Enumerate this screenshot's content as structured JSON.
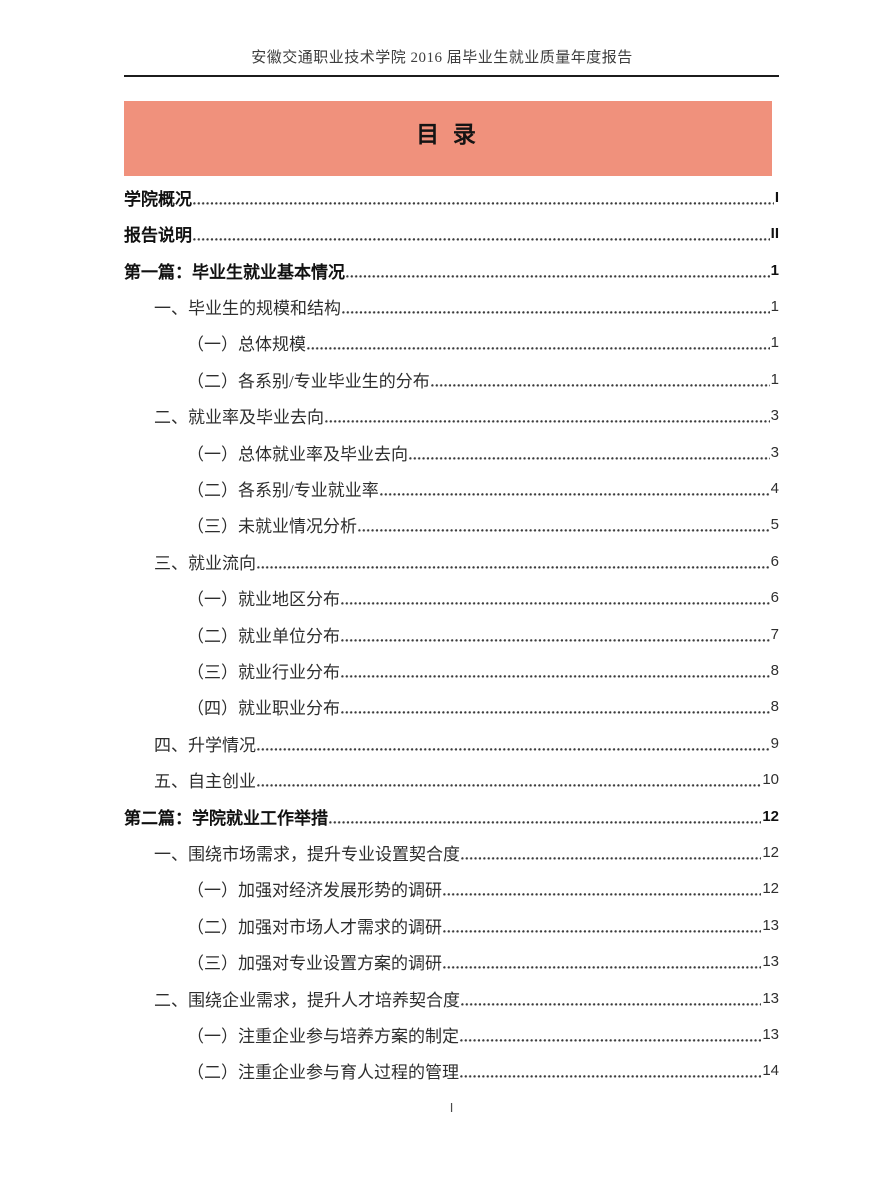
{
  "header": {
    "title": "安徽交通职业技术学院 2016 届毕业生就业质量年度报告"
  },
  "toc": {
    "title": "目 录",
    "entries": [
      {
        "label": "学院概况",
        "page": "I",
        "level": 1,
        "bold": true
      },
      {
        "label": "报告说明",
        "page": "II",
        "level": 1,
        "bold": true
      },
      {
        "label": "第一篇：毕业生就业基本情况",
        "page": "1",
        "level": 1,
        "bold": true
      },
      {
        "label": "一、毕业生的规模和结构",
        "page": "1",
        "level": 2,
        "bold": false
      },
      {
        "label": "（一）总体规模",
        "page": "1",
        "level": 3,
        "bold": false
      },
      {
        "label": "（二）各系别/专业毕业生的分布",
        "page": "1",
        "level": 3,
        "bold": false
      },
      {
        "label": "二、就业率及毕业去向",
        "page": "3",
        "level": 2,
        "bold": false
      },
      {
        "label": "（一）总体就业率及毕业去向",
        "page": "3",
        "level": 3,
        "bold": false
      },
      {
        "label": "（二）各系别/专业就业率",
        "page": "4",
        "level": 3,
        "bold": false
      },
      {
        "label": "（三）未就业情况分析",
        "page": "5",
        "level": 3,
        "bold": false
      },
      {
        "label": "三、就业流向",
        "page": "6",
        "level": 2,
        "bold": false
      },
      {
        "label": "（一）就业地区分布",
        "page": "6",
        "level": 3,
        "bold": false
      },
      {
        "label": "（二）就业单位分布",
        "page": "7",
        "level": 3,
        "bold": false
      },
      {
        "label": "（三）就业行业分布",
        "page": "8",
        "level": 3,
        "bold": false
      },
      {
        "label": "（四）就业职业分布",
        "page": "8",
        "level": 3,
        "bold": false
      },
      {
        "label": "四、升学情况",
        "page": "9",
        "level": 2,
        "bold": false
      },
      {
        "label": "五、自主创业",
        "page": "10",
        "level": 2,
        "bold": false
      },
      {
        "label": "第二篇：学院就业工作举措",
        "page": "12",
        "level": 1,
        "bold": true
      },
      {
        "label": "一、围绕市场需求，提升专业设置契合度",
        "page": "12",
        "level": 2,
        "bold": false
      },
      {
        "label": "（一）加强对经济发展形势的调研",
        "page": "12",
        "level": 3,
        "bold": false
      },
      {
        "label": "（二）加强对市场人才需求的调研",
        "page": "13",
        "level": 3,
        "bold": false
      },
      {
        "label": "（三）加强对专业设置方案的调研",
        "page": "13",
        "level": 3,
        "bold": false
      },
      {
        "label": "二、围绕企业需求，提升人才培养契合度",
        "page": "13",
        "level": 2,
        "bold": false
      },
      {
        "label": "（一）注重企业参与培养方案的制定",
        "page": "13",
        "level": 3,
        "bold": false
      },
      {
        "label": "（二）注重企业参与育人过程的管理",
        "page": "14",
        "level": 3,
        "bold": false
      }
    ]
  },
  "footer": {
    "page_number": "I"
  },
  "colors": {
    "banner": "#F0917C",
    "rule": "#1C1C1C",
    "text": "#2E2E2E",
    "bold_text": "#111111"
  }
}
